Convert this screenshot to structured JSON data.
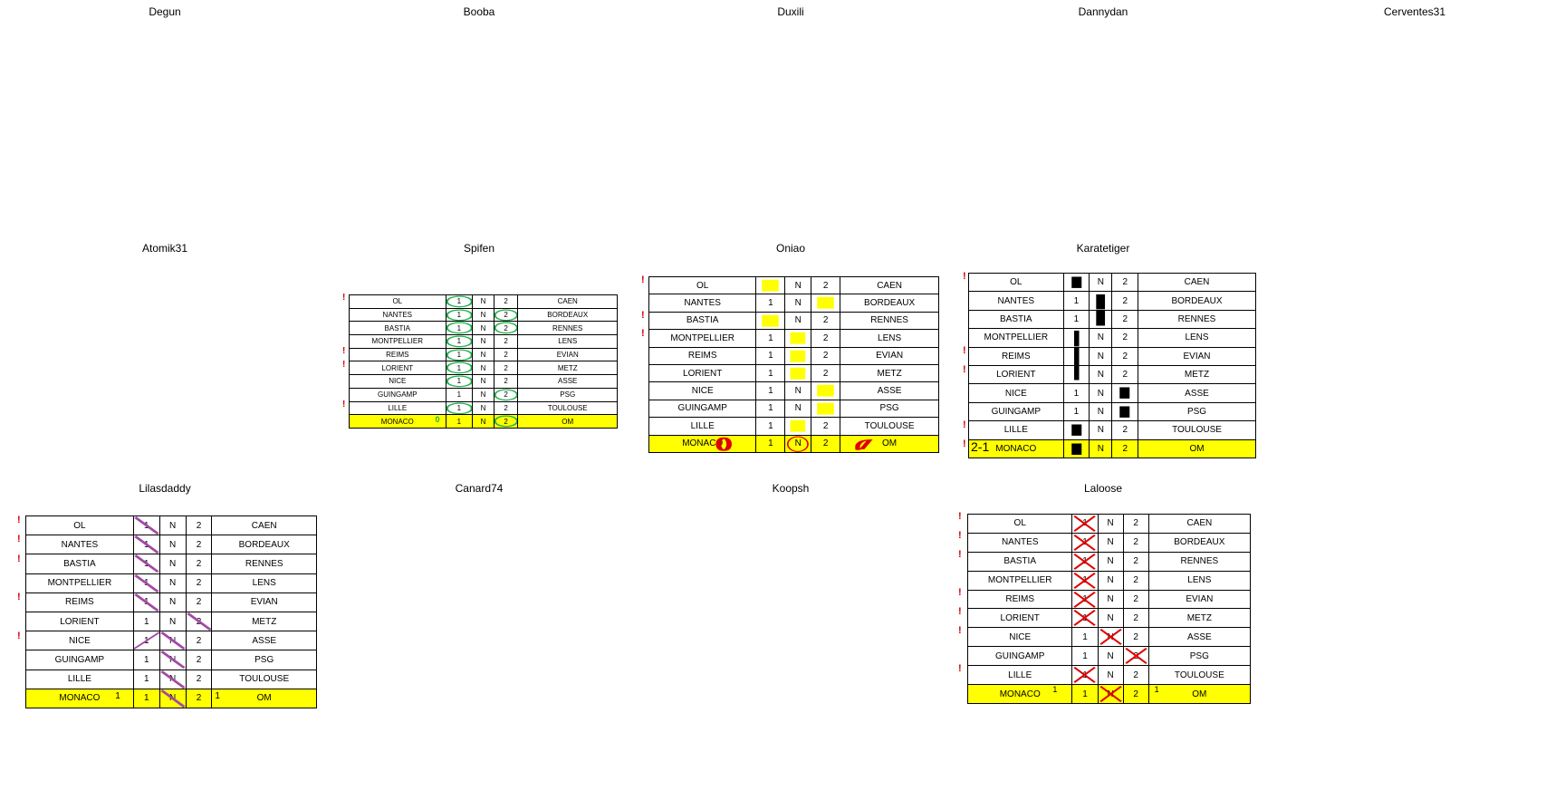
{
  "players": {
    "degun": "Degun",
    "booba": "Booba",
    "duxili": "Duxili",
    "dannydan": "Dannydan",
    "cerventes": "Cerventes31",
    "atomik": "Atomik31",
    "spifen": "Spifen",
    "oniao": "Oniao",
    "karatetiger": "Karatetiger",
    "lilasdaddy": "Lilasdaddy",
    "canard": "Canard74",
    "koopsh": "Koopsh",
    "laloose": "Laloose"
  },
  "matches": [
    {
      "home": "OL",
      "h": "1",
      "n": "N",
      "a": "2",
      "away": "CAEN"
    },
    {
      "home": "NANTES",
      "h": "1",
      "n": "N",
      "a": "2",
      "away": "BORDEAUX"
    },
    {
      "home": "BASTIA",
      "h": "1",
      "n": "N",
      "a": "2",
      "away": "RENNES"
    },
    {
      "home": "MONTPELLIER",
      "h": "1",
      "n": "N",
      "a": "2",
      "away": "LENS"
    },
    {
      "home": "REIMS",
      "h": "1",
      "n": "N",
      "a": "2",
      "away": "EVIAN"
    },
    {
      "home": "LORIENT",
      "h": "1",
      "n": "N",
      "a": "2",
      "away": "METZ"
    },
    {
      "home": "NICE",
      "h": "1",
      "n": "N",
      "a": "2",
      "away": "ASSE"
    },
    {
      "home": "GUINGAMP",
      "h": "1",
      "n": "N",
      "a": "2",
      "away": "PSG"
    },
    {
      "home": "LILLE",
      "h": "1",
      "n": "N",
      "a": "2",
      "away": "TOULOUSE"
    },
    {
      "home": "MONACO",
      "h": "1",
      "n": "N",
      "a": "2",
      "away": "OM"
    }
  ],
  "annotations": {
    "spifen_score": "0",
    "karatetiger_score": "2-1",
    "lilas_score_home": "1",
    "lilas_score_away": "1",
    "laloose_score_home": "1",
    "laloose_score_away": "1",
    "tick": "!"
  },
  "colors": {
    "highlight": "#ffff00",
    "green": "#22b14c",
    "red": "#e00000",
    "purple": "#a349a4"
  }
}
